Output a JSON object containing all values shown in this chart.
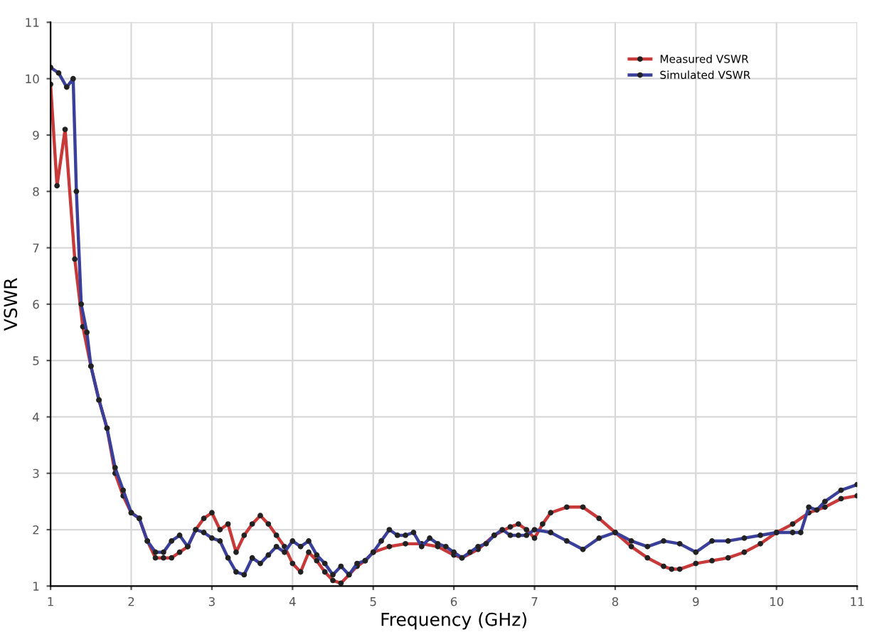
{
  "chart_data": {
    "type": "line",
    "xlabel": "Frequency (GHz)",
    "ylabel": "VSWR",
    "xlim": [
      1,
      11
    ],
    "ylim": [
      1,
      11
    ],
    "xticks": [
      1,
      2,
      3,
      4,
      5,
      6,
      7,
      8,
      9,
      10,
      11
    ],
    "yticks": [
      1,
      2,
      3,
      4,
      5,
      6,
      7,
      8,
      9,
      10,
      11
    ],
    "grid": true,
    "legend": "top right",
    "marker": "circle",
    "line_style": "solid",
    "series": [
      {
        "name": "Measured VSWR",
        "color": "#c83a3a",
        "x": [
          1.0,
          1.08,
          1.18,
          1.3,
          1.4,
          1.5,
          1.6,
          1.7,
          1.8,
          1.9,
          2.0,
          2.1,
          2.2,
          2.3,
          2.4,
          2.5,
          2.6,
          2.7,
          2.8,
          2.9,
          3.0,
          3.1,
          3.2,
          3.3,
          3.4,
          3.5,
          3.6,
          3.7,
          3.8,
          3.9,
          4.0,
          4.1,
          4.2,
          4.3,
          4.4,
          4.5,
          4.6,
          4.7,
          4.8,
          4.9,
          5.0,
          5.2,
          5.4,
          5.6,
          5.8,
          6.0,
          6.1,
          6.3,
          6.5,
          6.7,
          6.8,
          6.9,
          7.0,
          7.1,
          7.2,
          7.4,
          7.6,
          7.8,
          8.0,
          8.2,
          8.4,
          8.6,
          8.7,
          8.8,
          9.0,
          9.2,
          9.4,
          9.6,
          9.8,
          10.0,
          10.2,
          10.4,
          10.6,
          10.8,
          11.0
        ],
        "values": [
          9.9,
          8.1,
          9.1,
          6.8,
          5.6,
          4.9,
          4.3,
          3.8,
          3.0,
          2.6,
          2.3,
          2.2,
          1.8,
          1.5,
          1.5,
          1.5,
          1.6,
          1.7,
          2.0,
          2.2,
          2.3,
          2.0,
          2.1,
          1.6,
          1.9,
          2.1,
          2.25,
          2.1,
          1.9,
          1.7,
          1.4,
          1.25,
          1.6,
          1.45,
          1.25,
          1.1,
          1.05,
          1.2,
          1.35,
          1.45,
          1.6,
          1.7,
          1.75,
          1.75,
          1.7,
          1.55,
          1.5,
          1.65,
          1.9,
          2.05,
          2.1,
          2.0,
          1.85,
          2.1,
          2.3,
          2.4,
          2.4,
          2.2,
          1.95,
          1.7,
          1.5,
          1.35,
          1.3,
          1.3,
          1.4,
          1.45,
          1.5,
          1.6,
          1.75,
          1.95,
          2.1,
          2.3,
          2.4,
          2.55,
          2.6
        ]
      },
      {
        "name": "Simulated VSWR",
        "color": "#3a3f9a",
        "x": [
          1.0,
          1.1,
          1.2,
          1.28,
          1.32,
          1.38,
          1.45,
          1.5,
          1.6,
          1.7,
          1.8,
          1.9,
          2.0,
          2.1,
          2.2,
          2.3,
          2.4,
          2.5,
          2.6,
          2.7,
          2.8,
          2.9,
          3.0,
          3.1,
          3.2,
          3.3,
          3.4,
          3.5,
          3.6,
          3.7,
          3.8,
          3.9,
          4.0,
          4.1,
          4.2,
          4.3,
          4.4,
          4.5,
          4.6,
          4.7,
          4.8,
          4.9,
          5.0,
          5.1,
          5.2,
          5.3,
          5.4,
          5.5,
          5.6,
          5.7,
          5.8,
          5.9,
          6.0,
          6.1,
          6.2,
          6.3,
          6.4,
          6.5,
          6.6,
          6.7,
          6.8,
          6.9,
          7.0,
          7.2,
          7.4,
          7.6,
          7.8,
          8.0,
          8.2,
          8.4,
          8.6,
          8.8,
          9.0,
          9.2,
          9.4,
          9.6,
          9.8,
          10.0,
          10.2,
          10.3,
          10.4,
          10.5,
          10.6,
          10.8,
          11.0
        ],
        "values": [
          10.2,
          10.1,
          9.85,
          10.0,
          8.0,
          6.0,
          5.5,
          4.9,
          4.3,
          3.8,
          3.1,
          2.7,
          2.3,
          2.2,
          1.8,
          1.6,
          1.6,
          1.8,
          1.9,
          1.7,
          2.0,
          1.95,
          1.85,
          1.8,
          1.5,
          1.25,
          1.2,
          1.5,
          1.4,
          1.55,
          1.7,
          1.6,
          1.8,
          1.7,
          1.8,
          1.55,
          1.4,
          1.2,
          1.35,
          1.2,
          1.4,
          1.45,
          1.6,
          1.8,
          2.0,
          1.9,
          1.9,
          1.95,
          1.7,
          1.85,
          1.75,
          1.7,
          1.6,
          1.5,
          1.6,
          1.7,
          1.75,
          1.9,
          2.0,
          1.9,
          1.9,
          1.9,
          2.0,
          1.95,
          1.8,
          1.65,
          1.85,
          1.95,
          1.8,
          1.7,
          1.8,
          1.75,
          1.6,
          1.8,
          1.8,
          1.85,
          1.9,
          1.95,
          1.95,
          1.95,
          2.4,
          2.35,
          2.5,
          2.7,
          2.8
        ]
      }
    ]
  }
}
